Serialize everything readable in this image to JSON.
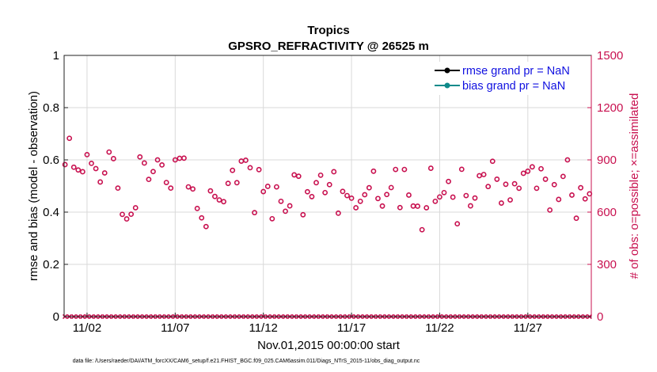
{
  "colors": {
    "obs": "#c8104f",
    "rmse": "#000000",
    "bias": "#0e8a8a",
    "legend_text": "#1010e0"
  },
  "chart_data": {
    "type": "scatter",
    "title": "Tropics",
    "subtitle": "GPSRO_REFRACTIVITY @ 26525 m",
    "xlabel": "Nov.01,2015 00:00:00 start",
    "ylabel_left": "rmse and bias (model - observation)",
    "ylabel_right": "# of obs: o=possible; ×=assimilated",
    "footnote": "data file: /Users/raeder/DAI/ATM_forcXX/CAM6_setup/f.e21.FHIST_BGC.f09_025.CAM6assim.011/Diags_NTrS_2015-11/obs_diag_output.nc",
    "xlim": [
      0.7,
      30.6
    ],
    "ylim_left": [
      0,
      1
    ],
    "ylim_right": [
      0,
      1500
    ],
    "x_ticks": [
      {
        "value": 2,
        "label": "11/02"
      },
      {
        "value": 7,
        "label": "11/07"
      },
      {
        "value": 12,
        "label": "11/12"
      },
      {
        "value": 17,
        "label": "11/17"
      },
      {
        "value": 22,
        "label": "11/22"
      },
      {
        "value": 27,
        "label": "11/27"
      }
    ],
    "y_ticks_left": [
      {
        "value": 0,
        "label": "0"
      },
      {
        "value": 0.2,
        "label": "0.2"
      },
      {
        "value": 0.4,
        "label": "0.4"
      },
      {
        "value": 0.6,
        "label": "0.6"
      },
      {
        "value": 0.8,
        "label": "0.8"
      },
      {
        "value": 1,
        "label": "1"
      }
    ],
    "y_ticks_right": [
      {
        "value": 0,
        "label": "0"
      },
      {
        "value": 300,
        "label": "300"
      },
      {
        "value": 600,
        "label": "600"
      },
      {
        "value": 900,
        "label": "900"
      },
      {
        "value": 1200,
        "label": "1200"
      },
      {
        "value": 1500,
        "label": "1500"
      }
    ],
    "legend": [
      {
        "label": "rmse grand pr = NaN",
        "series": "rmse"
      },
      {
        "label": "bias grand pr = NaN",
        "series": "bias"
      }
    ],
    "series": [
      {
        "name": "obs possible",
        "marker": "circle",
        "axis": "right",
        "x_start": 0.75,
        "x_step": 0.25,
        "values": [
          873,
          1024,
          858,
          842,
          832,
          930,
          880,
          850,
          773,
          825,
          945,
          907,
          738,
          587,
          561,
          588,
          625,
          917,
          882,
          788,
          833,
          900,
          871,
          770,
          738,
          900,
          909,
          910,
          745,
          733,
          621,
          567,
          517,
          722,
          690,
          670,
          660,
          765,
          840,
          769,
          893,
          898,
          855,
          597,
          844,
          718,
          748,
          562,
          745,
          662,
          605,
          636,
          814,
          806,
          585,
          717,
          689,
          769,
          812,
          712,
          758,
          832,
          594,
          719,
          695,
          680,
          625,
          662,
          700,
          740,
          835,
          678,
          635,
          701,
          741,
          845,
          626,
          845,
          698,
          635,
          634,
          499,
          625,
          852,
          662,
          687,
          712,
          776,
          686,
          533,
          846,
          695,
          636,
          681,
          809,
          816,
          747,
          892,
          789,
          652,
          760,
          670,
          763,
          737,
          823,
          835,
          860,
          737,
          849,
          789,
          612,
          758,
          673,
          805,
          900,
          698,
          565,
          740,
          676,
          705
        ]
      },
      {
        "name": "obs assimilated",
        "marker": "x",
        "axis": "right",
        "x_start": 0.75,
        "x_step": 0.25,
        "value": 0,
        "count": 120
      }
    ]
  }
}
